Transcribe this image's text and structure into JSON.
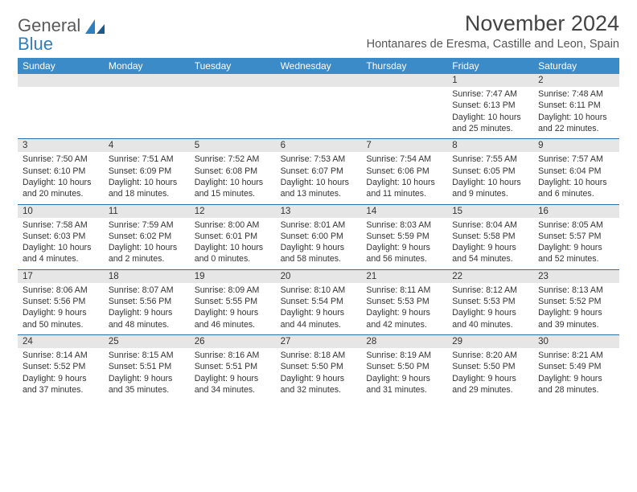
{
  "brand": {
    "part1": "General",
    "part2": "Blue"
  },
  "title": "November 2024",
  "subtitle": "Hontanares de Eresma, Castille and Leon, Spain",
  "columns": [
    "Sunday",
    "Monday",
    "Tuesday",
    "Wednesday",
    "Thursday",
    "Friday",
    "Saturday"
  ],
  "colors": {
    "header_bg": "#3b8bc9",
    "header_fg": "#ffffff",
    "border": "#2f6ea9",
    "daynum_bg": "#e6e6e6",
    "text": "#333333",
    "logo_gray": "#5a5a5a",
    "logo_blue": "#2f7fbf"
  },
  "typography": {
    "title_fontsize": 27,
    "subtitle_fontsize": 14.5,
    "column_fontsize": 12,
    "daynum_fontsize": 11.5,
    "info_fontsize": 10.6
  },
  "weeks": [
    [
      {
        "day": "",
        "sunrise": "",
        "sunset": "",
        "daylight": ""
      },
      {
        "day": "",
        "sunrise": "",
        "sunset": "",
        "daylight": ""
      },
      {
        "day": "",
        "sunrise": "",
        "sunset": "",
        "daylight": ""
      },
      {
        "day": "",
        "sunrise": "",
        "sunset": "",
        "daylight": ""
      },
      {
        "day": "",
        "sunrise": "",
        "sunset": "",
        "daylight": ""
      },
      {
        "day": "1",
        "sunrise": "Sunrise: 7:47 AM",
        "sunset": "Sunset: 6:13 PM",
        "daylight": "Daylight: 10 hours and 25 minutes."
      },
      {
        "day": "2",
        "sunrise": "Sunrise: 7:48 AM",
        "sunset": "Sunset: 6:11 PM",
        "daylight": "Daylight: 10 hours and 22 minutes."
      }
    ],
    [
      {
        "day": "3",
        "sunrise": "Sunrise: 7:50 AM",
        "sunset": "Sunset: 6:10 PM",
        "daylight": "Daylight: 10 hours and 20 minutes."
      },
      {
        "day": "4",
        "sunrise": "Sunrise: 7:51 AM",
        "sunset": "Sunset: 6:09 PM",
        "daylight": "Daylight: 10 hours and 18 minutes."
      },
      {
        "day": "5",
        "sunrise": "Sunrise: 7:52 AM",
        "sunset": "Sunset: 6:08 PM",
        "daylight": "Daylight: 10 hours and 15 minutes."
      },
      {
        "day": "6",
        "sunrise": "Sunrise: 7:53 AM",
        "sunset": "Sunset: 6:07 PM",
        "daylight": "Daylight: 10 hours and 13 minutes."
      },
      {
        "day": "7",
        "sunrise": "Sunrise: 7:54 AM",
        "sunset": "Sunset: 6:06 PM",
        "daylight": "Daylight: 10 hours and 11 minutes."
      },
      {
        "day": "8",
        "sunrise": "Sunrise: 7:55 AM",
        "sunset": "Sunset: 6:05 PM",
        "daylight": "Daylight: 10 hours and 9 minutes."
      },
      {
        "day": "9",
        "sunrise": "Sunrise: 7:57 AM",
        "sunset": "Sunset: 6:04 PM",
        "daylight": "Daylight: 10 hours and 6 minutes."
      }
    ],
    [
      {
        "day": "10",
        "sunrise": "Sunrise: 7:58 AM",
        "sunset": "Sunset: 6:03 PM",
        "daylight": "Daylight: 10 hours and 4 minutes."
      },
      {
        "day": "11",
        "sunrise": "Sunrise: 7:59 AM",
        "sunset": "Sunset: 6:02 PM",
        "daylight": "Daylight: 10 hours and 2 minutes."
      },
      {
        "day": "12",
        "sunrise": "Sunrise: 8:00 AM",
        "sunset": "Sunset: 6:01 PM",
        "daylight": "Daylight: 10 hours and 0 minutes."
      },
      {
        "day": "13",
        "sunrise": "Sunrise: 8:01 AM",
        "sunset": "Sunset: 6:00 PM",
        "daylight": "Daylight: 9 hours and 58 minutes."
      },
      {
        "day": "14",
        "sunrise": "Sunrise: 8:03 AM",
        "sunset": "Sunset: 5:59 PM",
        "daylight": "Daylight: 9 hours and 56 minutes."
      },
      {
        "day": "15",
        "sunrise": "Sunrise: 8:04 AM",
        "sunset": "Sunset: 5:58 PM",
        "daylight": "Daylight: 9 hours and 54 minutes."
      },
      {
        "day": "16",
        "sunrise": "Sunrise: 8:05 AM",
        "sunset": "Sunset: 5:57 PM",
        "daylight": "Daylight: 9 hours and 52 minutes."
      }
    ],
    [
      {
        "day": "17",
        "sunrise": "Sunrise: 8:06 AM",
        "sunset": "Sunset: 5:56 PM",
        "daylight": "Daylight: 9 hours and 50 minutes."
      },
      {
        "day": "18",
        "sunrise": "Sunrise: 8:07 AM",
        "sunset": "Sunset: 5:56 PM",
        "daylight": "Daylight: 9 hours and 48 minutes."
      },
      {
        "day": "19",
        "sunrise": "Sunrise: 8:09 AM",
        "sunset": "Sunset: 5:55 PM",
        "daylight": "Daylight: 9 hours and 46 minutes."
      },
      {
        "day": "20",
        "sunrise": "Sunrise: 8:10 AM",
        "sunset": "Sunset: 5:54 PM",
        "daylight": "Daylight: 9 hours and 44 minutes."
      },
      {
        "day": "21",
        "sunrise": "Sunrise: 8:11 AM",
        "sunset": "Sunset: 5:53 PM",
        "daylight": "Daylight: 9 hours and 42 minutes."
      },
      {
        "day": "22",
        "sunrise": "Sunrise: 8:12 AM",
        "sunset": "Sunset: 5:53 PM",
        "daylight": "Daylight: 9 hours and 40 minutes."
      },
      {
        "day": "23",
        "sunrise": "Sunrise: 8:13 AM",
        "sunset": "Sunset: 5:52 PM",
        "daylight": "Daylight: 9 hours and 39 minutes."
      }
    ],
    [
      {
        "day": "24",
        "sunrise": "Sunrise: 8:14 AM",
        "sunset": "Sunset: 5:52 PM",
        "daylight": "Daylight: 9 hours and 37 minutes."
      },
      {
        "day": "25",
        "sunrise": "Sunrise: 8:15 AM",
        "sunset": "Sunset: 5:51 PM",
        "daylight": "Daylight: 9 hours and 35 minutes."
      },
      {
        "day": "26",
        "sunrise": "Sunrise: 8:16 AM",
        "sunset": "Sunset: 5:51 PM",
        "daylight": "Daylight: 9 hours and 34 minutes."
      },
      {
        "day": "27",
        "sunrise": "Sunrise: 8:18 AM",
        "sunset": "Sunset: 5:50 PM",
        "daylight": "Daylight: 9 hours and 32 minutes."
      },
      {
        "day": "28",
        "sunrise": "Sunrise: 8:19 AM",
        "sunset": "Sunset: 5:50 PM",
        "daylight": "Daylight: 9 hours and 31 minutes."
      },
      {
        "day": "29",
        "sunrise": "Sunrise: 8:20 AM",
        "sunset": "Sunset: 5:50 PM",
        "daylight": "Daylight: 9 hours and 29 minutes."
      },
      {
        "day": "30",
        "sunrise": "Sunrise: 8:21 AM",
        "sunset": "Sunset: 5:49 PM",
        "daylight": "Daylight: 9 hours and 28 minutes."
      }
    ]
  ]
}
